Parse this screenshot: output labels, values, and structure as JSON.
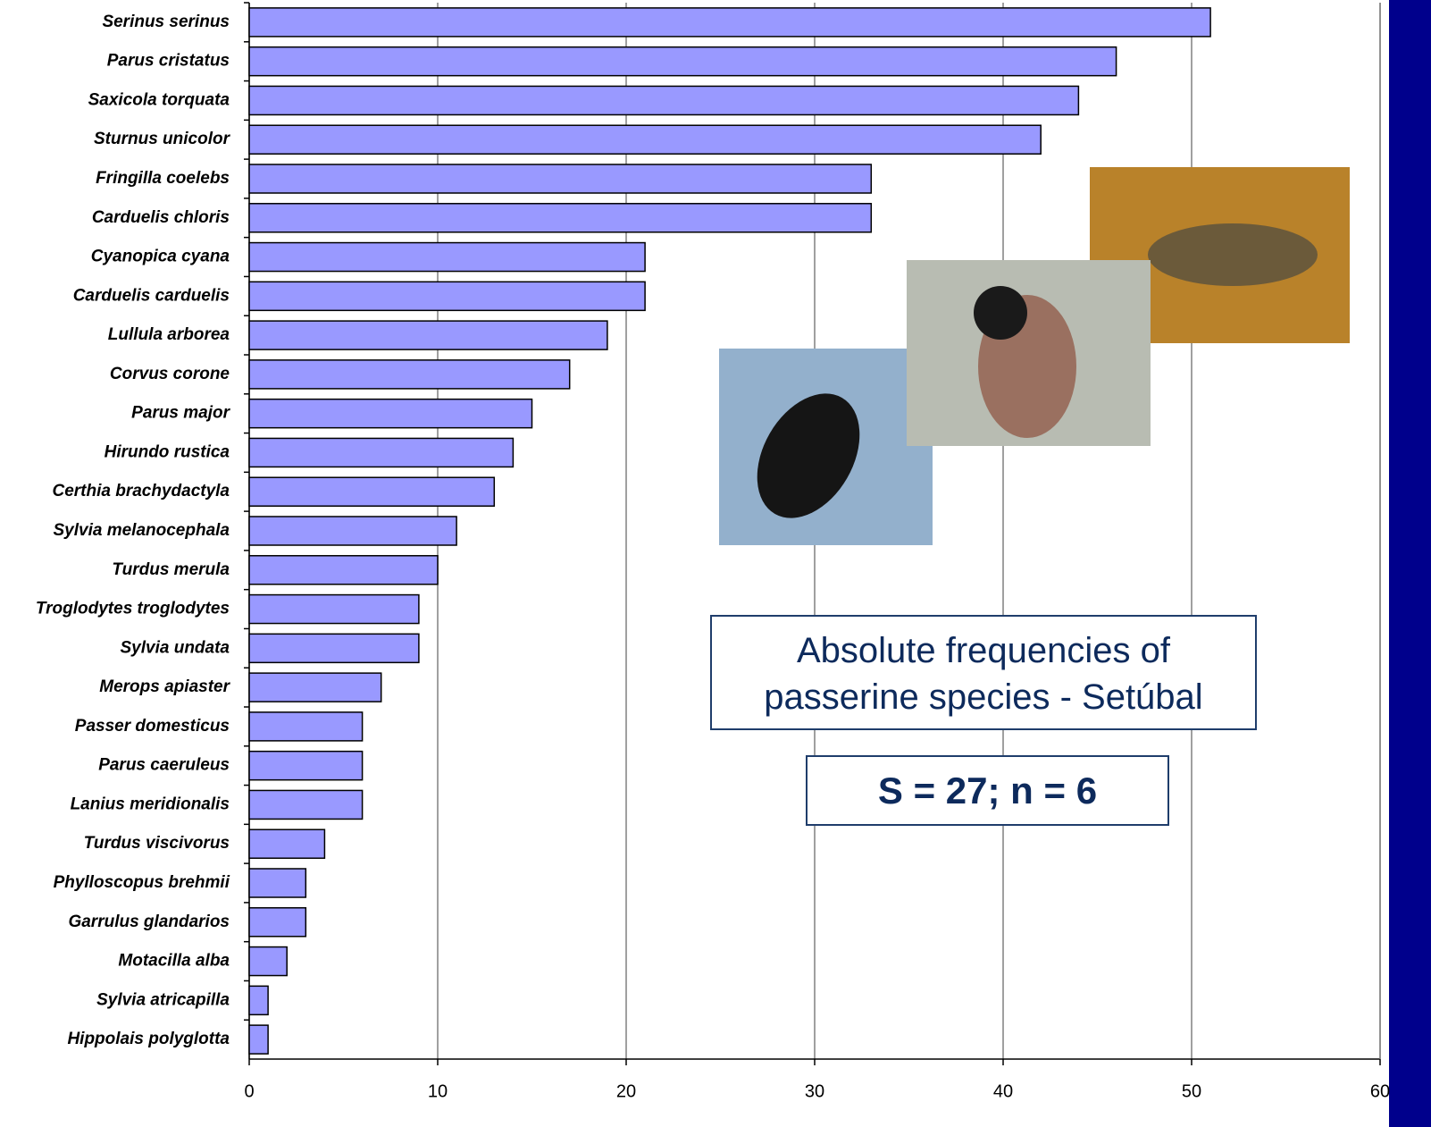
{
  "chart_data": {
    "type": "bar",
    "orientation": "horizontal",
    "title": "Absolute frequencies of passerine species - Setúbal",
    "annotation": "S = 27; n = 6",
    "categories": [
      "Serinus serinus",
      "Parus cristatus",
      "Saxicola torquata",
      "Sturnus unicolor",
      "Fringilla coelebs",
      "Carduelis chloris",
      "Cyanopica cyana",
      "Carduelis carduelis",
      "Lullula arborea",
      "Corvus corone",
      "Parus major",
      "Hirundo rustica",
      "Certhia brachydactyla",
      "Sylvia melanocephala",
      "Turdus merula",
      "Troglodytes troglodytes",
      "Sylvia undata",
      "Merops apiaster",
      "Passer domesticus",
      "Parus caeruleus",
      "Lanius meridionalis",
      "Turdus viscivorus",
      "Phylloscopus brehmii",
      "Garrulus glandarios",
      "Motacilla alba",
      "Sylvia atricapilla",
      "Hippolais polyglotta"
    ],
    "values": [
      51,
      46,
      44,
      42,
      33,
      33,
      21,
      21,
      19,
      17,
      15,
      14,
      13,
      11,
      10,
      9,
      9,
      7,
      6,
      6,
      6,
      4,
      3,
      3,
      2,
      1,
      1
    ],
    "color": "#9999ff",
    "xlim": [
      0,
      60
    ],
    "xticks": [
      0,
      10,
      20,
      30,
      40,
      50,
      60
    ],
    "grid": true
  }
}
